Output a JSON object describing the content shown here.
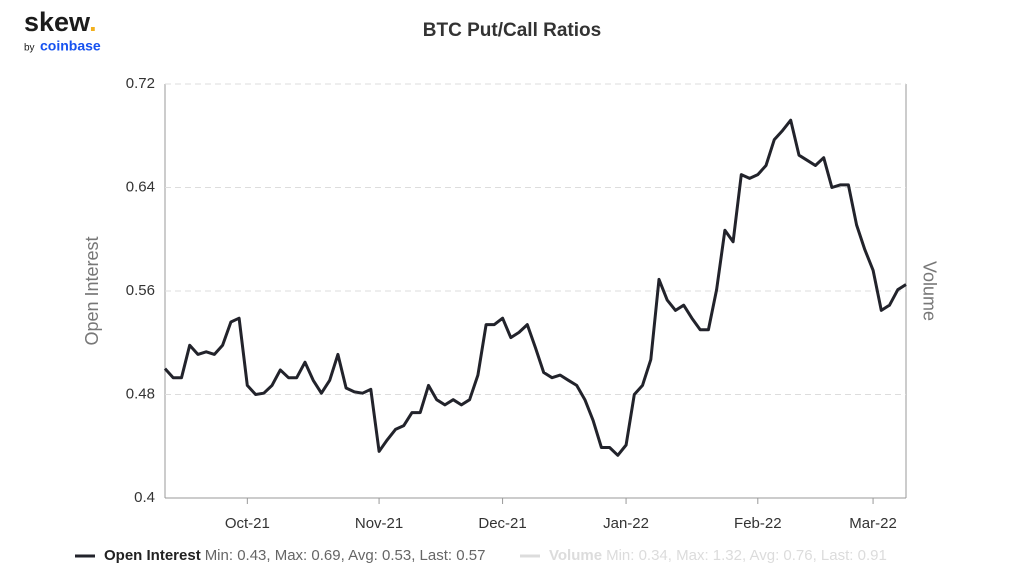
{
  "logo": {
    "name": "skew",
    "dot": ".",
    "by": "by",
    "brand": "coinbase"
  },
  "chart_data": {
    "type": "line",
    "title": "BTC Put/Call Ratios",
    "y_label": "Open Interest",
    "y2_label": "Volume",
    "categories": [
      null,
      null,
      null,
      null,
      null,
      null,
      null,
      null,
      null,
      null,
      "Oct-21",
      null,
      null,
      null,
      null,
      null,
      null,
      null,
      null,
      null,
      null,
      null,
      null,
      null,
      null,
      null,
      "Nov-21",
      null,
      null,
      null,
      null,
      null,
      null,
      null,
      null,
      null,
      null,
      null,
      null,
      null,
      null,
      "Dec-21",
      null,
      null,
      null,
      null,
      null,
      null,
      null,
      null,
      null,
      null,
      null,
      null,
      null,
      null,
      "Jan-22",
      null,
      null,
      null,
      null,
      null,
      null,
      null,
      null,
      null,
      null,
      null,
      null,
      null,
      null,
      null,
      "Feb-22",
      null,
      null,
      null,
      null,
      null,
      null,
      null,
      null,
      null,
      null,
      null,
      null,
      null,
      "Mar-22",
      null,
      null,
      null,
      null
    ],
    "series": [
      {
        "name": "Open Interest",
        "color": "#22232b",
        "stats": "Min: 0.43, Max: 0.69, Avg: 0.53, Last: 0.57",
        "values": [
          0.5,
          0.493,
          0.493,
          0.518,
          0.511,
          0.513,
          0.511,
          0.518,
          0.536,
          0.539,
          0.487,
          0.48,
          0.481,
          0.487,
          0.499,
          0.493,
          0.493,
          0.505,
          0.491,
          0.481,
          0.491,
          0.511,
          0.485,
          0.482,
          0.481,
          0.484,
          0.436,
          0.445,
          0.453,
          0.456,
          0.466,
          0.466,
          0.487,
          0.476,
          0.472,
          0.476,
          0.472,
          0.476,
          0.495,
          0.534,
          0.534,
          0.539,
          0.524,
          0.528,
          0.534,
          0.516,
          0.497,
          0.493,
          0.495,
          0.491,
          0.487,
          0.476,
          0.46,
          0.439,
          0.439,
          0.433,
          0.441,
          0.48,
          0.487,
          0.507,
          0.569,
          0.553,
          0.545,
          0.549,
          0.539,
          0.53,
          0.53,
          0.561,
          0.607,
          0.598,
          0.65,
          0.647,
          0.65,
          0.657,
          0.677,
          0.684,
          0.692,
          0.665,
          0.661,
          0.657,
          0.663,
          0.64,
          0.642,
          0.642,
          0.611,
          0.592,
          0.576,
          0.545,
          0.549,
          0.561,
          0.565
        ]
      },
      {
        "name": "Volume",
        "color": "#dcdcdc",
        "stats": "Min: 0.34, Max: 1.32, Avg: 0.76, Last: 0.91",
        "visible": false
      }
    ],
    "ylim": [
      0.4,
      0.72
    ],
    "yticks": [
      0.4,
      0.48,
      0.56,
      0.64,
      0.72
    ],
    "grid": true
  }
}
